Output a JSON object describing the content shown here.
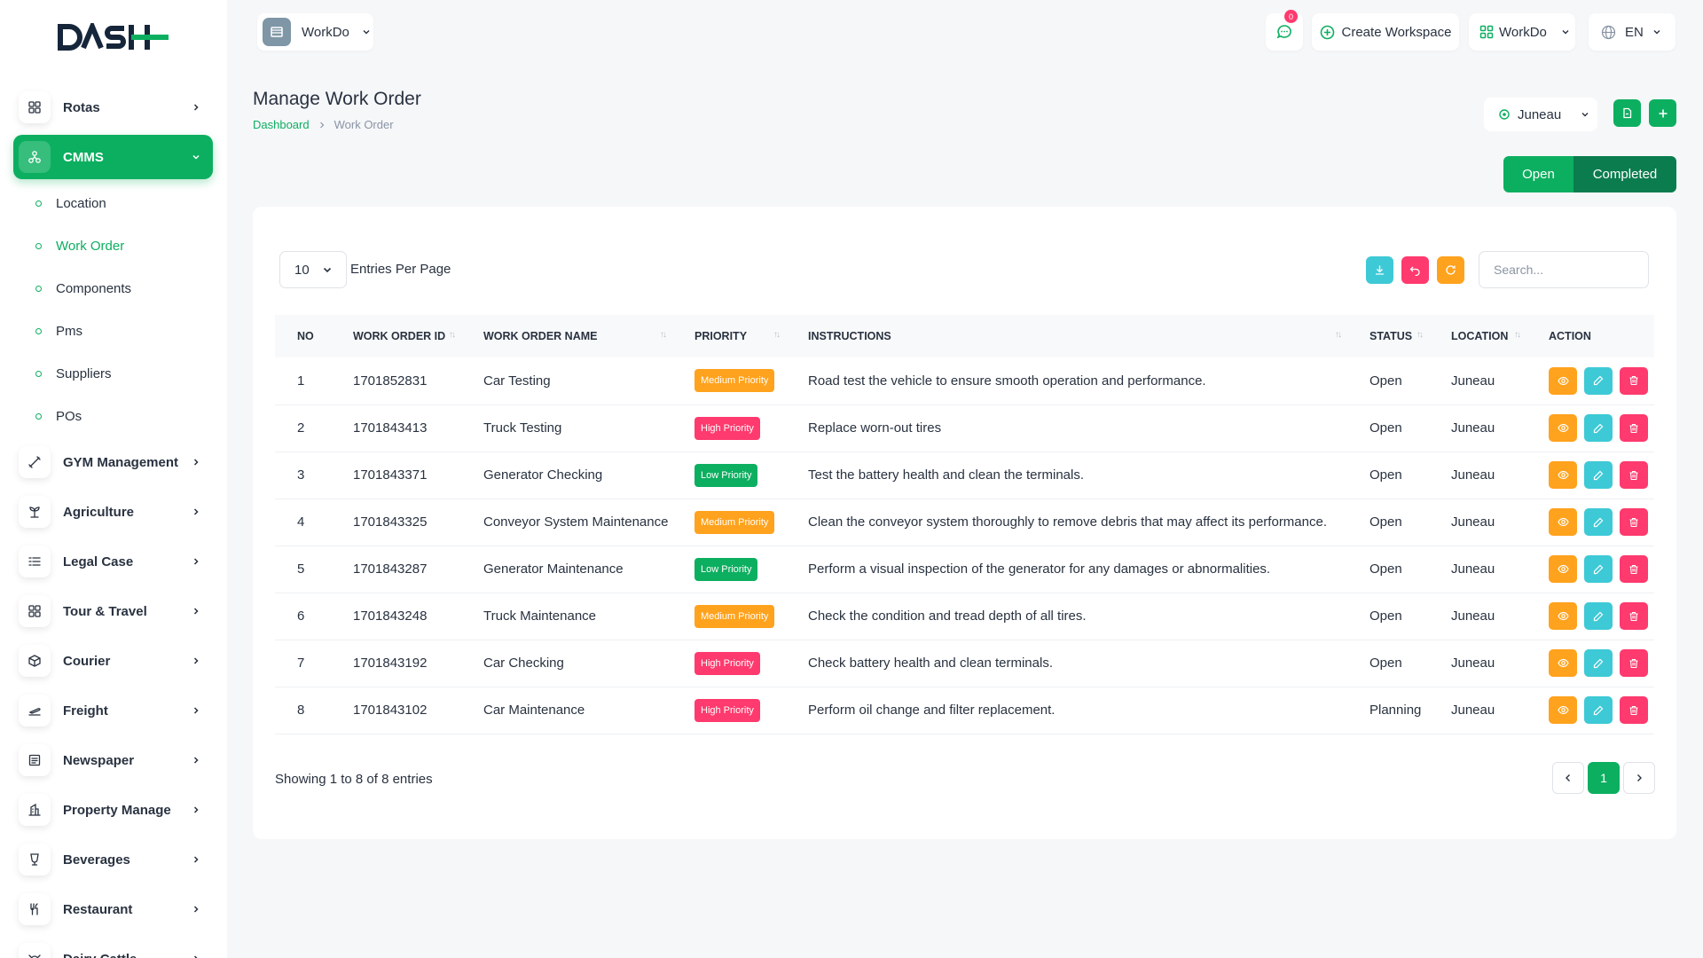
{
  "sidebar": {
    "logo_text": "DASH",
    "items": [
      {
        "label": "Rotas",
        "icon": "grid-icon"
      },
      {
        "label": "CMMS",
        "icon": "network-icon"
      },
      {
        "label": "GYM Management",
        "icon": "dumbbell-icon"
      },
      {
        "label": "Agriculture",
        "icon": "plant-icon"
      },
      {
        "label": "Legal Case",
        "icon": "list-icon"
      },
      {
        "label": "Tour & Travel",
        "icon": "grid-icon"
      },
      {
        "label": "Courier",
        "icon": "box-icon"
      },
      {
        "label": "Freight",
        "icon": "plane-icon"
      },
      {
        "label": "Newspaper",
        "icon": "newspaper-icon"
      },
      {
        "label": "Property Manage",
        "icon": "building-icon"
      },
      {
        "label": "Beverages",
        "icon": "glass-icon"
      },
      {
        "label": "Restaurant",
        "icon": "cutlery-icon"
      },
      {
        "label": "Dairy Cattle",
        "icon": "cow-icon"
      }
    ],
    "cmms_sub": [
      "Location",
      "Work Order",
      "Components",
      "Pms",
      "Suppliers",
      "POs"
    ]
  },
  "header": {
    "workspace": "WorkDo",
    "notif_count": "0",
    "create_workspace": "Create Workspace",
    "workdo_menu": "WorkDo",
    "language": "EN"
  },
  "page": {
    "title": "Manage Work Order",
    "breadcrumb_home": "Dashboard",
    "breadcrumb_current": "Work Order",
    "location": "Juneau",
    "toggle_open": "Open",
    "toggle_completed": "Completed"
  },
  "table_controls": {
    "per_page": "10",
    "per_page_label": "Entries Per Page",
    "search_placeholder": "Search..."
  },
  "columns": [
    "NO",
    "WORK ORDER ID",
    "WORK ORDER NAME",
    "PRIORITY",
    "INSTRUCTIONS",
    "STATUS",
    "LOCATION",
    "ACTION"
  ],
  "colors": {
    "accent": "#0caf60",
    "medium": "#ffa21d",
    "high": "#ff3a6e",
    "low": "#0caf60",
    "info": "#3ec9d6"
  },
  "rows": [
    {
      "no": "1",
      "id": "1701852831",
      "name": "Car Testing",
      "priority": "Medium Priority",
      "level": "medium",
      "instructions": "Road test the vehicle to ensure smooth operation and performance.",
      "status": "Open",
      "location": "Juneau"
    },
    {
      "no": "2",
      "id": "1701843413",
      "name": "Truck Testing",
      "priority": "High Priority",
      "level": "high",
      "instructions": "Replace worn-out tires",
      "status": "Open",
      "location": "Juneau"
    },
    {
      "no": "3",
      "id": "1701843371",
      "name": "Generator Checking",
      "priority": "Low Priority",
      "level": "low",
      "instructions": "Test the battery health and clean the terminals.",
      "status": "Open",
      "location": "Juneau"
    },
    {
      "no": "4",
      "id": "1701843325",
      "name": "Conveyor System Maintenance",
      "priority": "Medium Priority",
      "level": "medium",
      "instructions": "Clean the conveyor system thoroughly to remove debris that may affect its performance.",
      "status": "Open",
      "location": "Juneau"
    },
    {
      "no": "5",
      "id": "1701843287",
      "name": "Generator Maintenance",
      "priority": "Low Priority",
      "level": "low",
      "instructions": "Perform a visual inspection of the generator for any damages or abnormalities.",
      "status": "Open",
      "location": "Juneau"
    },
    {
      "no": "6",
      "id": "1701843248",
      "name": "Truck Maintenance",
      "priority": "Medium Priority",
      "level": "medium",
      "instructions": "Check the condition and tread depth of all tires.",
      "status": "Open",
      "location": "Juneau"
    },
    {
      "no": "7",
      "id": "1701843192",
      "name": "Car Checking",
      "priority": "High Priority",
      "level": "high",
      "instructions": "Check battery health and clean terminals.",
      "status": "Open",
      "location": "Juneau"
    },
    {
      "no": "8",
      "id": "1701843102",
      "name": "Car Maintenance",
      "priority": "High Priority",
      "level": "high",
      "instructions": "Perform oil change and filter replacement.",
      "status": "Planning",
      "location": "Juneau"
    }
  ],
  "footer": {
    "showing": "Showing 1 to 8 of 8 entries",
    "current_page": "1"
  }
}
